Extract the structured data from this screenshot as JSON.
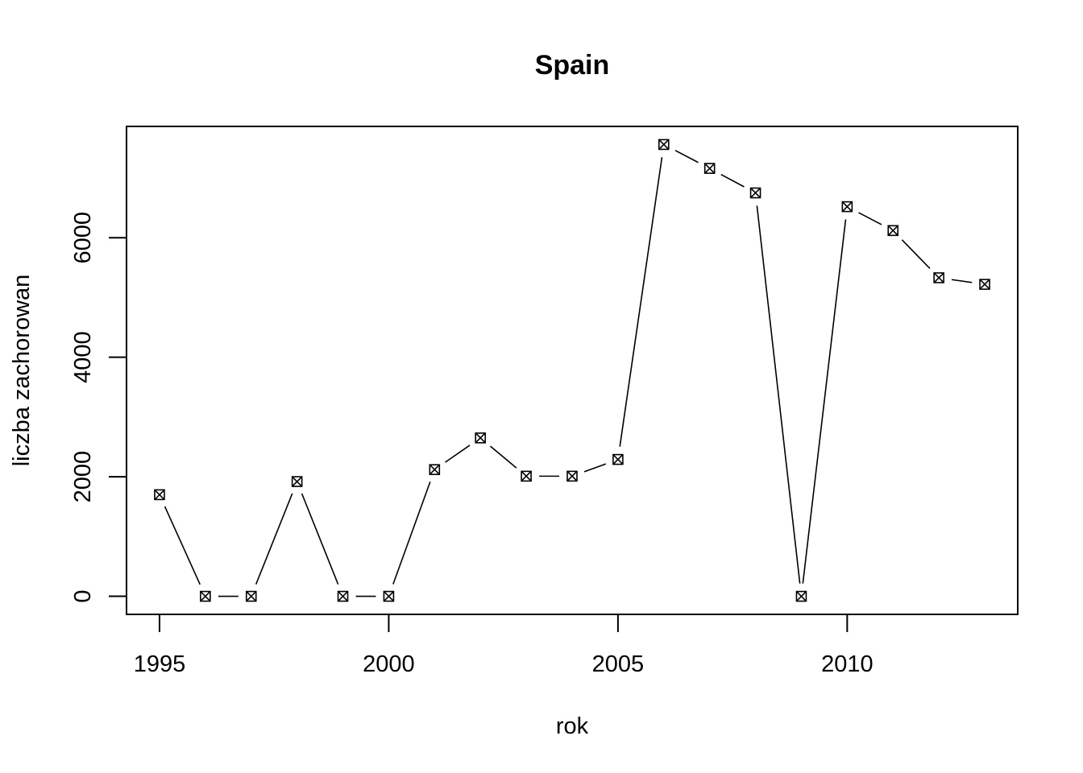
{
  "chart_data": {
    "type": "line",
    "title": "Spain",
    "xlabel": "rok",
    "ylabel": "liczba zachorowan",
    "x": [
      1995,
      1996,
      1997,
      1998,
      1999,
      2000,
      2001,
      2002,
      2003,
      2004,
      2005,
      2006,
      2007,
      2008,
      2009,
      2010,
      2011,
      2012,
      2013
    ],
    "series": [
      {
        "values": [
          1700,
          0,
          0,
          1920,
          0,
          0,
          2120,
          2650,
          2010,
          2010,
          2290,
          7560,
          7160,
          6750,
          0,
          6520,
          6120,
          5330,
          5220
        ]
      }
    ],
    "xlim": [
      1994.28,
      2013.72
    ],
    "ylim": [
      -302.4,
      7862.4
    ],
    "xticks": [
      "1995",
      "2000",
      "2005",
      "2010"
    ],
    "yticks": [
      "0",
      "2000",
      "4000",
      "6000"
    ],
    "marker": "box-x",
    "line_style": "both-with-gaps",
    "grid": false,
    "legend": "none"
  }
}
